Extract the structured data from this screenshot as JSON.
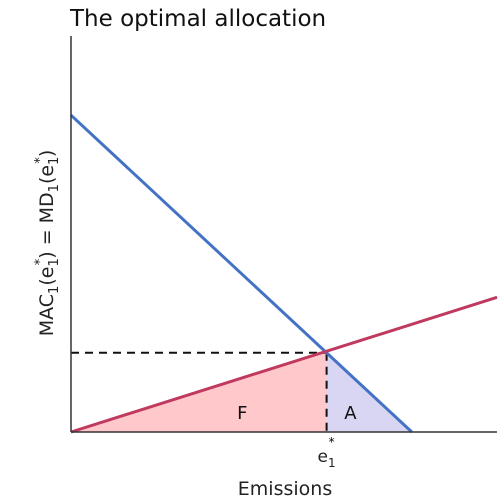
{
  "chart_data": {
    "type": "line",
    "title": "The optimal allocation",
    "xlabel": "Emissions",
    "ylabel": {
      "left": "MAC",
      "left_sub": "1",
      "arg1": "(e",
      "arg1_sub": "1",
      "arg1_sup": "*",
      "arg1_close": ")",
      "equals": " = ",
      "right": "MD",
      "right_sub": "1",
      "arg2": "(e",
      "arg2_sub": "1",
      "arg2_sup": "*",
      "arg2_close": ")"
    },
    "xlim": [
      0,
      10
    ],
    "ylim": [
      0,
      10
    ],
    "grid": false,
    "series": [
      {
        "name": "MAC",
        "color": "#4472c4",
        "x": [
          0,
          8.0
        ],
        "y": [
          8.0,
          0
        ]
      },
      {
        "name": "MD",
        "color": "#c0395f",
        "x": [
          0,
          10
        ],
        "y": [
          0,
          3.4
        ]
      }
    ],
    "optimum": {
      "x": 6.0,
      "y": 2.0
    },
    "x_tick": {
      "base": "e",
      "sub": "1",
      "sup": "*"
    },
    "regions": [
      {
        "label": "F",
        "color": "#ffc9cc"
      },
      {
        "label": "A",
        "color": "#d8d6f2"
      }
    ]
  }
}
